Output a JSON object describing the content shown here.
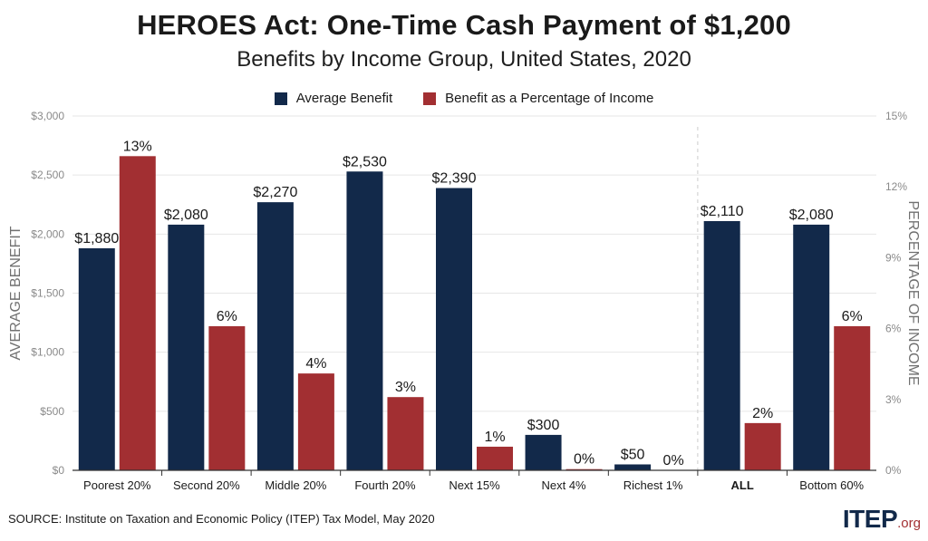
{
  "header": {
    "title": "HEROES Act: One-Time Cash Payment of $1,200",
    "subtitle": "Benefits by Income Group, United States, 2020"
  },
  "footer": {
    "source": "SOURCE: Institute on Taxation and Economic Policy (ITEP) Tax Model, May 2020",
    "logo_main": "ITEP",
    "logo_suffix": ".org"
  },
  "colors": {
    "navy": "#12294a",
    "red": "#a22f32",
    "grid": "#e6e6e6"
  },
  "chart_data": {
    "type": "bar",
    "title": "HEROES Act: One-Time Cash Payment of $1,200",
    "subtitle": "Benefits by Income Group, United States, 2020",
    "categories": [
      "Poorest 20%",
      "Second 20%",
      "Middle 20%",
      "Fourth 20%",
      "Next 15%",
      "Next 4%",
      "Richest 1%",
      "ALL",
      "Bottom 60%"
    ],
    "bold_categories": [
      "ALL"
    ],
    "series": [
      {
        "name": "Average Benefit",
        "axis": "left",
        "color": "#12294a",
        "values": [
          1880,
          2080,
          2270,
          2530,
          2390,
          300,
          50,
          2110,
          2080
        ],
        "labels": [
          "$1,880",
          "$2,080",
          "$2,270",
          "$2,530",
          "$2,390",
          "$300",
          "$50",
          "$2,110",
          "$2,080"
        ]
      },
      {
        "name": "Benefit as a Percentage of Income",
        "axis": "right",
        "color": "#a22f32",
        "values": [
          13.3,
          6.1,
          4.1,
          3.1,
          1.0,
          0.05,
          0.0,
          2.0,
          6.1
        ],
        "labels": [
          "13%",
          "6%",
          "4%",
          "3%",
          "1%",
          "0%",
          "0%",
          "2%",
          "6%"
        ]
      }
    ],
    "ylabel": "AVERAGE BENEFIT",
    "y2label": "PERCENTAGE OF INCOME",
    "ylim": [
      0,
      3000
    ],
    "y2lim": [
      0,
      15
    ],
    "yticks": [
      "$0",
      "$500",
      "$1,000",
      "$1,500",
      "$2,000",
      "$2,500",
      "$3,000"
    ],
    "y2ticks": [
      "0%",
      "3%",
      "6%",
      "9%",
      "12%",
      "15%"
    ],
    "grid": true,
    "legend": "top-center"
  }
}
